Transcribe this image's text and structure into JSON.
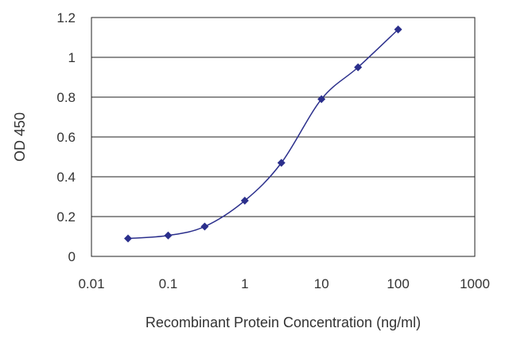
{
  "chart_data": {
    "type": "line",
    "title": "",
    "xlabel": "Recombinant Protein Concentration (ng/ml)",
    "ylabel": "OD 450",
    "x_scale": "log",
    "xlim": [
      0.01,
      1000
    ],
    "ylim": [
      0,
      1.2
    ],
    "x_ticks": [
      "0.01",
      "0.1",
      "1",
      "10",
      "100",
      "1000"
    ],
    "y_ticks": [
      "0",
      "0.2",
      "0.4",
      "0.6",
      "0.8",
      "1",
      "1.2"
    ],
    "grid": "horizontal",
    "series": [
      {
        "x": [
          0.03,
          0.1,
          0.3,
          1,
          3,
          10,
          30,
          100
        ],
        "y": [
          0.09,
          0.105,
          0.15,
          0.28,
          0.47,
          0.79,
          0.95,
          1.14
        ],
        "color": "#2b2f8c",
        "marker": "diamond"
      }
    ]
  }
}
